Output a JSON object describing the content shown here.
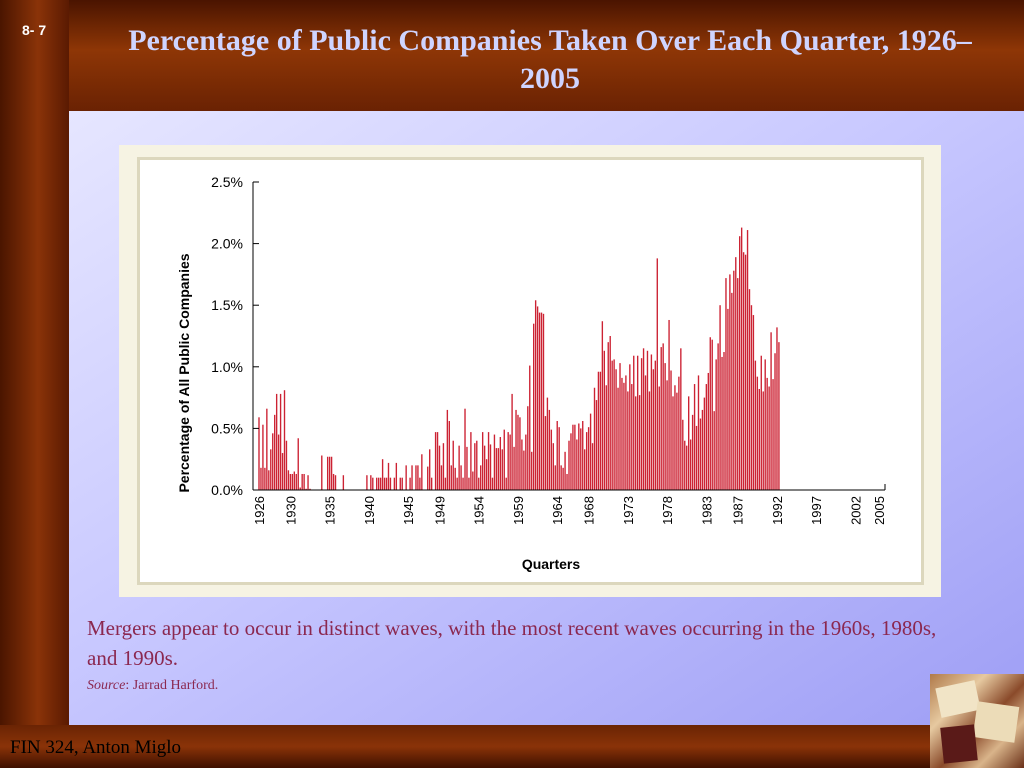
{
  "slide": {
    "number": "8- 7",
    "title": "Percentage of Public Companies Taken Over Each Quarter, 1926–2005",
    "caption": "Mergers appear to occur in distinct waves, with the most recent waves occurring in the 1960s, 1980s, and 1990s.",
    "source_label": "Source",
    "source_text": ": Jarrad Harford.",
    "footer": "FIN 324, Anton Miglo"
  },
  "colors": {
    "bar": "#cc2233",
    "title": "#cfd4ff",
    "caption": "#8b2850"
  },
  "chart_data": {
    "type": "bar",
    "ylabel": "Percentage of All Public Companies",
    "xlabel": "Quarters",
    "ylim": [
      0,
      2.5
    ],
    "y_ticks": [
      "0.0%",
      "0.5%",
      "1.0%",
      "1.5%",
      "2.0%",
      "2.5%"
    ],
    "y_tick_values": [
      0,
      0.5,
      1.0,
      1.5,
      2.0,
      2.5
    ],
    "x_tick_labels": [
      "1926",
      "1930",
      "1935",
      "1940",
      "1945",
      "1949",
      "1954",
      "1959",
      "1964",
      "1968",
      "1973",
      "1978",
      "1983",
      "1987",
      "1992",
      "1997",
      "2002",
      "2005"
    ],
    "x_range": [
      1926,
      2005
    ],
    "quarters_start": 1926,
    "values": [
      0.59,
      0.18,
      0.53,
      0.18,
      0.66,
      0.16,
      0.33,
      0.46,
      0.61,
      0.78,
      0.45,
      0.78,
      0.3,
      0.81,
      0.4,
      0.16,
      0.13,
      0.13,
      0.15,
      0.13,
      0.42,
      0.02,
      0.13,
      0.13,
      0.01,
      0.12,
      0.01,
      0.0,
      0.0,
      0.0,
      0.0,
      0.0,
      0.28,
      0.0,
      0.0,
      0.27,
      0.27,
      0.27,
      0.13,
      0.12,
      0.0,
      0.0,
      0.0,
      0.12,
      0.0,
      0.0,
      0.0,
      0.0,
      0.0,
      0.0,
      0.0,
      0.0,
      0.0,
      0.0,
      0.0,
      0.12,
      0.0,
      0.12,
      0.1,
      0.0,
      0.1,
      0.1,
      0.1,
      0.25,
      0.1,
      0.1,
      0.22,
      0.1,
      0.0,
      0.1,
      0.22,
      0.0,
      0.1,
      0.1,
      0.0,
      0.2,
      0.0,
      0.1,
      0.2,
      0.0,
      0.2,
      0.2,
      0.1,
      0.29,
      0.0,
      0.0,
      0.19,
      0.33,
      0.1,
      0.0,
      0.47,
      0.47,
      0.36,
      0.2,
      0.38,
      0.1,
      0.65,
      0.56,
      0.2,
      0.4,
      0.18,
      0.1,
      0.36,
      0.2,
      0.1,
      0.66,
      0.35,
      0.1,
      0.47,
      0.15,
      0.38,
      0.4,
      0.1,
      0.2,
      0.47,
      0.36,
      0.25,
      0.47,
      0.37,
      0.1,
      0.45,
      0.34,
      0.34,
      0.43,
      0.33,
      0.49,
      0.1,
      0.47,
      0.45,
      0.78,
      0.35,
      0.65,
      0.61,
      0.59,
      0.41,
      0.32,
      0.45,
      0.68,
      1.01,
      0.31,
      1.35,
      1.54,
      1.49,
      1.44,
      1.44,
      1.43,
      0.6,
      0.75,
      0.65,
      0.49,
      0.38,
      0.2,
      0.56,
      0.51,
      0.2,
      0.18,
      0.31,
      0.13,
      0.4,
      0.46,
      0.53,
      0.53,
      0.41,
      0.54,
      0.5,
      0.56,
      0.33,
      0.47,
      0.51,
      0.62,
      0.38,
      0.83,
      0.73,
      0.96,
      0.96,
      1.37,
      1.13,
      0.85,
      1.2,
      1.25,
      1.05,
      1.06,
      0.98,
      0.83,
      1.03,
      0.91,
      0.87,
      0.93,
      0.8,
      1.02,
      0.86,
      1.09,
      0.76,
      1.09,
      0.77,
      1.07,
      1.15,
      0.93,
      1.13,
      0.8,
      1.1,
      0.98,
      1.05,
      1.88,
      0.84,
      1.16,
      1.19,
      1.03,
      0.89,
      1.38,
      0.97,
      0.76,
      0.85,
      0.79,
      0.92,
      1.15,
      0.57,
      0.4,
      0.36,
      0.76,
      0.41,
      0.61,
      0.86,
      0.52,
      0.93,
      0.58,
      0.65,
      0.75,
      0.86,
      0.95,
      1.24,
      1.22,
      0.64,
      1.06,
      1.19,
      1.5,
      1.08,
      1.12,
      1.72,
      1.47,
      1.75,
      1.6,
      1.78,
      1.89,
      1.72,
      2.06,
      2.13,
      1.93,
      1.91,
      2.11,
      1.63,
      1.5,
      1.42,
      1.05,
      0.92,
      0.82,
      1.09,
      0.8,
      1.06,
      0.91,
      0.84,
      1.28,
      0.9,
      1.11,
      1.32,
      1.2
    ]
  }
}
